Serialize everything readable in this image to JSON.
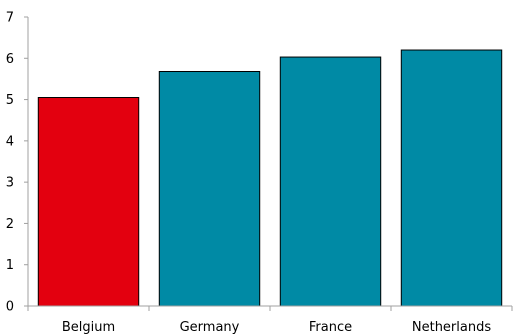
{
  "chart_data": {
    "type": "bar",
    "title": "",
    "xlabel": "",
    "ylabel": "",
    "categories": [
      "Belgium",
      "Germany",
      "France",
      "Netherlands"
    ],
    "values": [
      5.05,
      5.68,
      6.03,
      6.2
    ],
    "colors": [
      "#e3000f",
      "#008aa5",
      "#008aa5",
      "#008aa5"
    ],
    "ylim": [
      0,
      7
    ],
    "yticks": [
      "0",
      "1",
      "2",
      "3",
      "4",
      "5",
      "6",
      "7"
    ],
    "grid": false,
    "legend": "none"
  }
}
